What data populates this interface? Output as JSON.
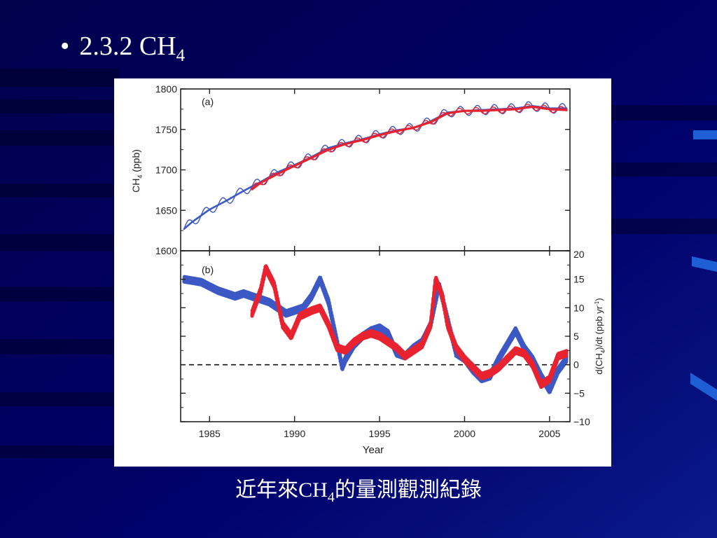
{
  "slide": {
    "background_color": "#00005e",
    "accent_color": "#1f5fd6",
    "bullet_symbol": "•",
    "heading_main": "2.3.2 CH",
    "heading_sub": "4",
    "caption_pre": "近年來CH",
    "caption_sub": "4",
    "caption_post": "的量測觀測紀錄"
  },
  "chart_data": [
    {
      "type": "line",
      "panel_label": "(a)",
      "ylabel_main": "CH",
      "ylabel_sub": "4",
      "ylabel_unit": " (ppb)",
      "xlim": [
        1983.3,
        2006.2
      ],
      "ylim": [
        1600,
        1800
      ],
      "y_ticks": [
        1600,
        1650,
        1700,
        1750,
        1800
      ],
      "grid": false,
      "series": [
        {
          "color": "#3b58c4",
          "smooth": {
            "x": [
              1983.5,
              1984,
              1985,
              1986,
              1987,
              1988,
              1989,
              1990,
              1991,
              1992,
              1993,
              1994,
              1995,
              1996,
              1997,
              1998,
              1999,
              2000,
              2001,
              2002,
              2003,
              2004,
              2005,
              2006
            ],
            "y": [
              1627,
              1636,
              1651,
              1662,
              1674,
              1685,
              1697,
              1706,
              1716,
              1727,
              1733,
              1738,
              1744,
              1749,
              1752,
              1760,
              1771,
              1773,
              1774,
              1775,
              1776,
              1779,
              1776,
              1776
            ]
          },
          "seasonal": {
            "amplitude": 6,
            "x_start": 1983.5,
            "x_end": 2006.0
          }
        },
        {
          "color": "#e8232f",
          "smooth": {
            "x": [
              1987.5,
              1988,
              1989,
              1990,
              1991,
              1992,
              1993,
              1994,
              1995,
              1996,
              1997,
              1998,
              1999,
              2000,
              2001,
              2002,
              2003,
              2004,
              2005,
              2006
            ],
            "y": [
              1676,
              1684,
              1695,
              1705,
              1715,
              1725,
              1732,
              1737,
              1743,
              1748,
              1752,
              1759,
              1770,
              1773,
              1773,
              1774,
              1775,
              1778,
              1775,
              1774
            ]
          },
          "seasonal": {
            "amplitude": 4,
            "x_start": 1987.5,
            "x_end": 2006.0
          }
        }
      ]
    },
    {
      "type": "line",
      "panel_label": "(b)",
      "xlabel": "Year",
      "ylabel": "d(CH4)/dt (ppb yr-1)",
      "ylabel_p1": "d(CH",
      "ylabel_s1": "4",
      "ylabel_p2": ")/dt (ppb yr",
      "ylabel_s2": "-1",
      "ylabel_p3": ")",
      "xlim": [
        1983.3,
        2006.2
      ],
      "ylim": [
        -10,
        20
      ],
      "x_ticks": [
        1985,
        1990,
        1995,
        2000,
        2005
      ],
      "y_ticks": [
        -10,
        -5,
        0,
        5,
        10,
        15,
        20
      ],
      "y_tick_labels": [
        "−10",
        "−5",
        "0",
        "5",
        "10",
        "15",
        "20"
      ],
      "zero_line": 0,
      "grid": false,
      "series": [
        {
          "color": "#3b58c4",
          "x": [
            1983.5,
            1984.5,
            1985.5,
            1986.5,
            1987,
            1987.5,
            1988,
            1988.5,
            1989,
            1989.5,
            1990,
            1990.5,
            1991,
            1991.5,
            1992,
            1992.5,
            1992.8,
            1993,
            1993.5,
            1994,
            1994.5,
            1995,
            1995.5,
            1996,
            1996.5,
            1997,
            1997.5,
            1998,
            1998.5,
            1999,
            1999.5,
            2000,
            2000.5,
            2001,
            2001.5,
            2002,
            2002.5,
            2003,
            2003.5,
            2004,
            2004.5,
            2005,
            2005.5,
            2006
          ],
          "y": [
            15,
            14.5,
            13,
            12,
            12.5,
            12,
            11.5,
            11,
            10,
            9,
            9.5,
            10,
            12,
            15,
            11,
            4,
            -0.5,
            1,
            3.5,
            5,
            6,
            6.5,
            5.5,
            2,
            1.5,
            3,
            4,
            7,
            14,
            8,
            2,
            1,
            -1,
            -2.5,
            -2,
            1,
            3.5,
            6,
            3,
            1,
            -2,
            -4.5,
            -1,
            1
          ]
        },
        {
          "color": "#e8232f",
          "x": [
            1987.5,
            1988,
            1988.3,
            1988.8,
            1989.3,
            1989.8,
            1990.3,
            1991,
            1991.5,
            1992,
            1992.5,
            1993,
            1993.5,
            1994,
            1994.5,
            1995,
            1995.5,
            1996,
            1996.5,
            1997,
            1997.5,
            1998,
            1998.3,
            1998.7,
            1999,
            1999.5,
            2000,
            2000.5,
            2001,
            2001.5,
            2002,
            2002.5,
            2003,
            2003.5,
            2004,
            2004.5,
            2005,
            2005.5,
            2006
          ],
          "y": [
            9,
            13,
            17,
            14,
            7,
            5,
            8.5,
            9.5,
            10,
            7,
            3,
            2.5,
            4,
            5,
            5.5,
            5,
            4,
            3,
            1.5,
            2.5,
            3.5,
            7,
            15,
            12,
            7,
            3,
            1,
            -0.5,
            -2,
            -1.5,
            -0.5,
            1,
            2.5,
            2,
            0,
            -3.5,
            -2.5,
            1.5,
            2
          ]
        }
      ]
    }
  ]
}
